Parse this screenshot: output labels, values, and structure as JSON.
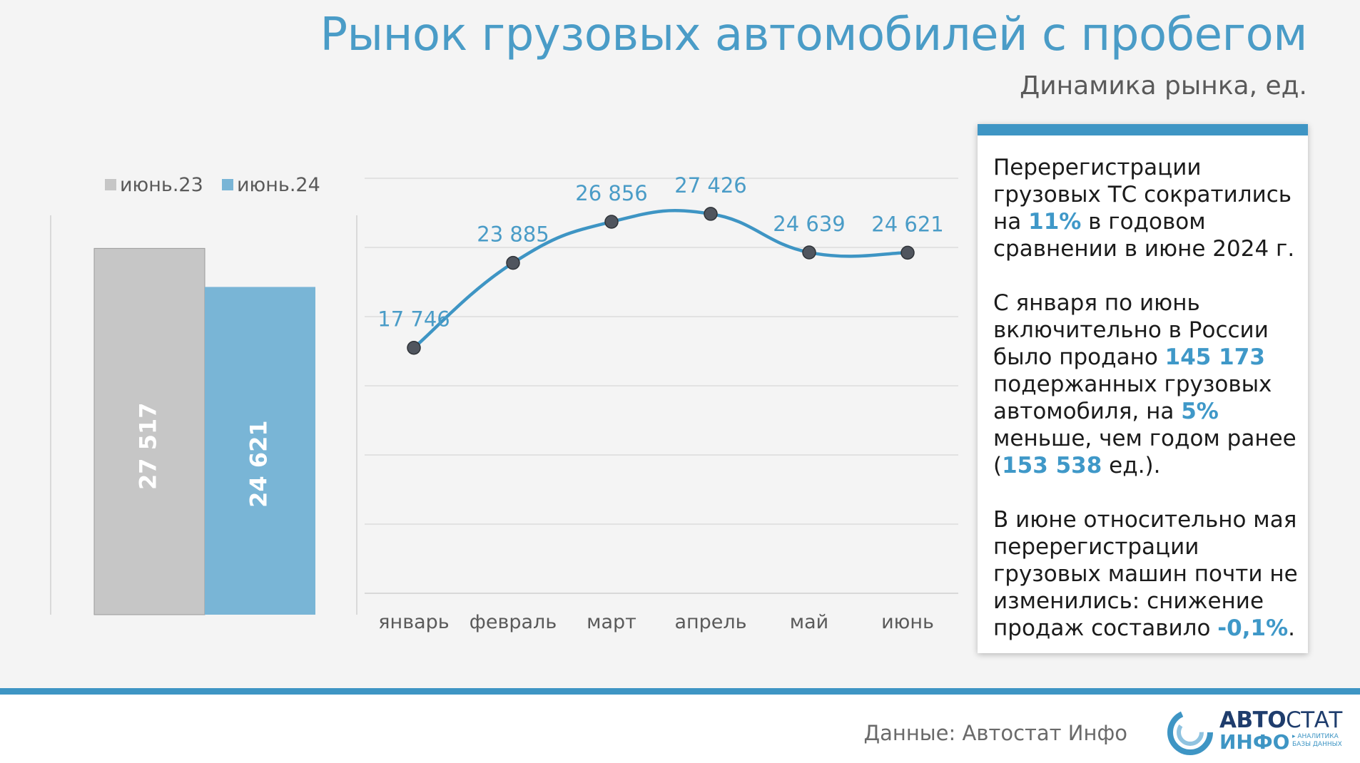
{
  "header": {
    "title": "Рынок грузовых автомобилей с пробегом",
    "subtitle": "Динамика рынка, ед."
  },
  "bar_chart": {
    "type": "bar",
    "legend": [
      "июнь.23",
      "июнь.24"
    ],
    "categories": [
      "июнь.23",
      "июнь.24"
    ],
    "values": [
      27517,
      24621
    ],
    "labels": [
      "27 517",
      "24 621"
    ],
    "colors": [
      "#c6c6c6",
      "#79b5d6"
    ],
    "ylim": [
      0,
      30000
    ]
  },
  "chart_data": {
    "type": "line",
    "title": "Рынок грузовых автомобилей с пробегом",
    "subtitle": "Динамика рынка, ед.",
    "categories": [
      "январь",
      "февраль",
      "март",
      "апрель",
      "май",
      "июнь"
    ],
    "values": [
      17746,
      23885,
      26856,
      27426,
      24639,
      24621
    ],
    "labels": [
      "17 746",
      "23 885",
      "26 856",
      "27 426",
      "24 639",
      "24 621"
    ],
    "ylim": [
      0,
      30000
    ],
    "grid": true,
    "line_color": "#3e95c4",
    "marker_color": "#50555e"
  },
  "info": {
    "p1_a": "Перерегистрации грузовых ТС сократились на ",
    "p1_b": "11%",
    "p1_c": " в годовом сравнении в июне 2024 г.",
    "p2_a": "С января по июнь включительно в России было продано ",
    "p2_b": "145 173",
    "p2_c": " подержанных грузовых автомобиля, на ",
    "p2_d": "5%",
    "p2_e": " меньше, чем годом ранее (",
    "p2_f": "153 538",
    "p2_g": " ед.).",
    "p3_a": "В июне относительно мая перерегистрации грузовых машин почти не изменились: снижение продаж составило ",
    "p3_b": "-0,1%",
    "p3_c": "."
  },
  "footer": {
    "source": "Данные: Автостат Инфо",
    "logo_top_a": "АВТО",
    "logo_top_b": "СТАТ",
    "logo_bottom": "ИНФО",
    "logo_tag_1": "▸ АНАЛИТИКА",
    "logo_tag_2": "БАЗЫ ДАННЫХ"
  }
}
